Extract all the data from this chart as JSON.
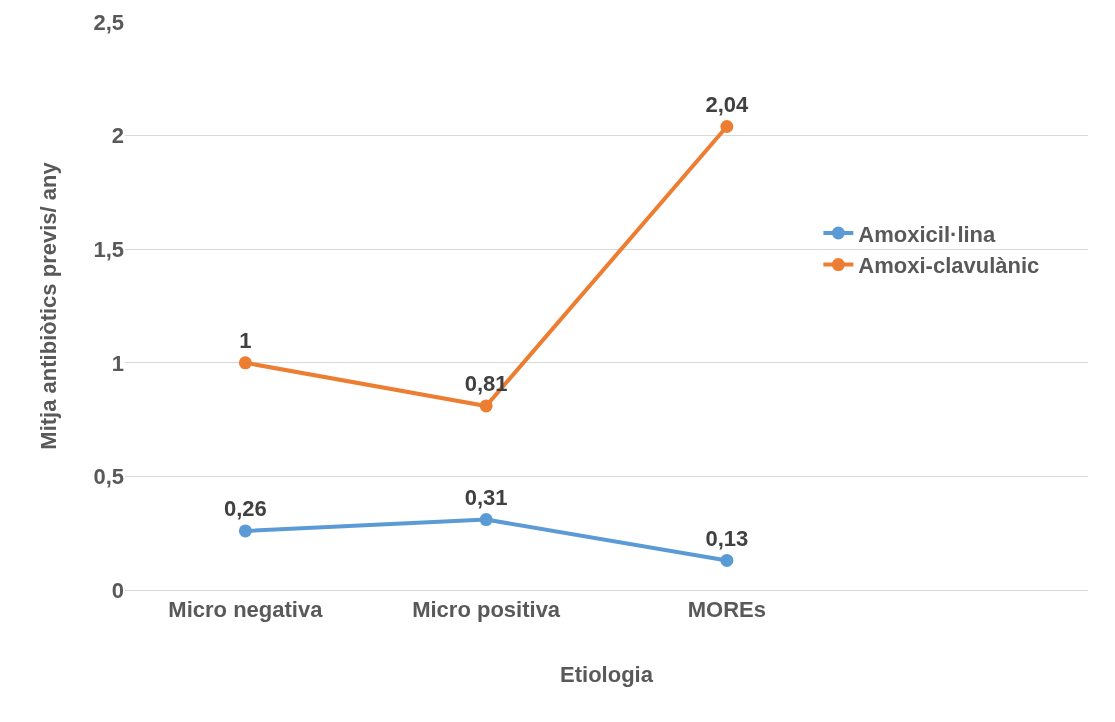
{
  "chart_data": {
    "type": "line",
    "xlabel": "Etiologia",
    "ylabel": "Mitja antibiòtics previs/ any",
    "categories": [
      "Micro negativa",
      "Micro positiva",
      "MOREs",
      null
    ],
    "series": [
      {
        "name": "Amoxicil·lina",
        "color": "#5b9bd5",
        "values": [
          0.26,
          0.31,
          0.13,
          null
        ],
        "value_labels": [
          "0,26",
          "0,31",
          "0,13",
          null
        ]
      },
      {
        "name": "Amoxi-clavulànic",
        "color": "#ed7d31",
        "values": [
          1,
          0.81,
          2.04,
          null
        ],
        "value_labels": [
          "1",
          "0,81",
          "2,04",
          null
        ]
      }
    ],
    "ylim": [
      0,
      2.5
    ],
    "yticks": [
      0,
      {
        "value": 0.5,
        "label": "0,5"
      },
      1,
      {
        "value": 1.5,
        "label": "1,5"
      },
      2,
      {
        "value": 2.5,
        "label": "2,5"
      }
    ],
    "grid": "y",
    "legend": "right",
    "marker": "circle",
    "line_style": "solid"
  }
}
